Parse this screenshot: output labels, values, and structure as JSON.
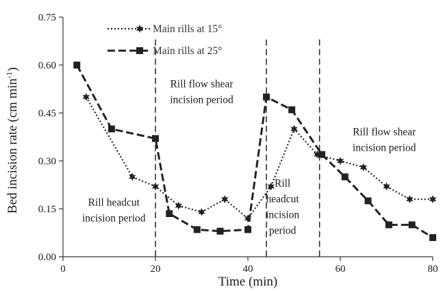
{
  "chart_data": {
    "type": "line",
    "xlabel": "Time (min)",
    "ylabel": "Bed incision rate (cm min",
    "ylabel_superscript": "-1",
    "ylabel_suffix": ")",
    "xlim": [
      0,
      80
    ],
    "ylim": [
      0,
      0.75
    ],
    "x_ticks": [
      0,
      20,
      40,
      60,
      80
    ],
    "y_ticks": [
      0.0,
      0.15,
      0.3,
      0.45,
      0.6,
      0.75
    ],
    "x_tick_labels": [
      "0",
      "20",
      "40",
      "60",
      "80"
    ],
    "y_tick_labels": [
      "0.00",
      "0.15",
      "0.30",
      "0.45",
      "0.60",
      "0.75"
    ],
    "grid": false,
    "legend_position": "top-left",
    "series": [
      {
        "name": "Main rills at 15°",
        "color": "#222222",
        "line_style": "dotted",
        "marker": "star",
        "x": [
          5,
          15,
          20,
          25,
          30,
          35,
          40,
          45,
          50,
          55,
          60,
          65,
          70,
          75,
          80
        ],
        "y": [
          0.5,
          0.25,
          0.22,
          0.16,
          0.14,
          0.18,
          0.12,
          0.22,
          0.4,
          0.32,
          0.3,
          0.28,
          0.22,
          0.18,
          0.18
        ]
      },
      {
        "name": "Main rills at 25°",
        "color": "#222222",
        "line_style": "dashed",
        "marker": "square",
        "x": [
          3,
          10.5,
          20,
          23,
          29,
          34,
          40,
          44,
          49.5,
          56,
          61,
          66,
          70.5,
          75.5,
          80
        ],
        "y": [
          0.6,
          0.4,
          0.37,
          0.135,
          0.085,
          0.08,
          0.085,
          0.5,
          0.46,
          0.32,
          0.25,
          0.175,
          0.1,
          0.1,
          0.06
        ]
      }
    ],
    "vertical_lines": [
      20,
      44,
      55.5
    ],
    "annotations": [
      {
        "lines": [
          "Rill flow shear",
          "incision period"
        ],
        "x": 30,
        "y": 0.53
      },
      {
        "lines": [
          "Rill headcut",
          "incision period"
        ],
        "x": 11,
        "y": 0.16
      },
      {
        "lines": [
          "Rill",
          "headcut",
          "incision",
          "period"
        ],
        "x": 47.5,
        "y": 0.22
      },
      {
        "lines": [
          "Rill flow shear",
          "incision period"
        ],
        "x": 69.5,
        "y": 0.38
      }
    ]
  }
}
